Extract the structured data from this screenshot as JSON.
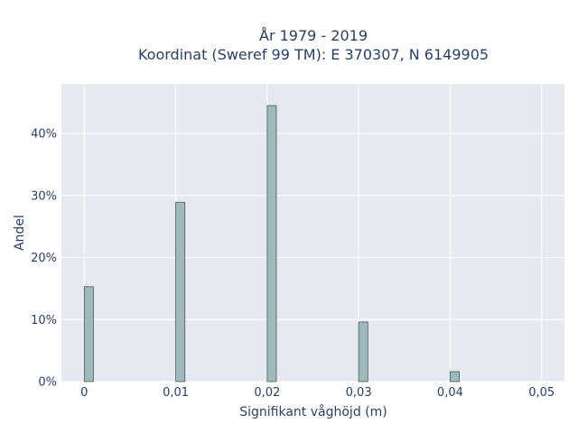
{
  "chart_data": {
    "type": "bar",
    "title_line1": "År 1979 - 2019",
    "title_line2": "Koordinat (Sweref 99 TM): E 370307, N 6149905",
    "xlabel": "Signifikant våghöjd (m)",
    "ylabel": "Andel",
    "x_ticks": [
      "0",
      "0,01",
      "0,02",
      "0,03",
      "0,04",
      "0,05"
    ],
    "y_ticks": [
      "0%",
      "10%",
      "20%",
      "30%",
      "40%"
    ],
    "xlim": [
      -0.0025,
      0.0525
    ],
    "ylim": [
      0,
      0.48
    ],
    "grid": true,
    "bar_color": "#a0b9bb",
    "bar_edge_color": "#4a5a5a",
    "plot_bg": "#e8e8f0",
    "x": [
      0,
      0.01,
      0.02,
      0.03,
      0.04
    ],
    "values": [
      0.153,
      0.289,
      0.445,
      0.096,
      0.016
    ]
  }
}
